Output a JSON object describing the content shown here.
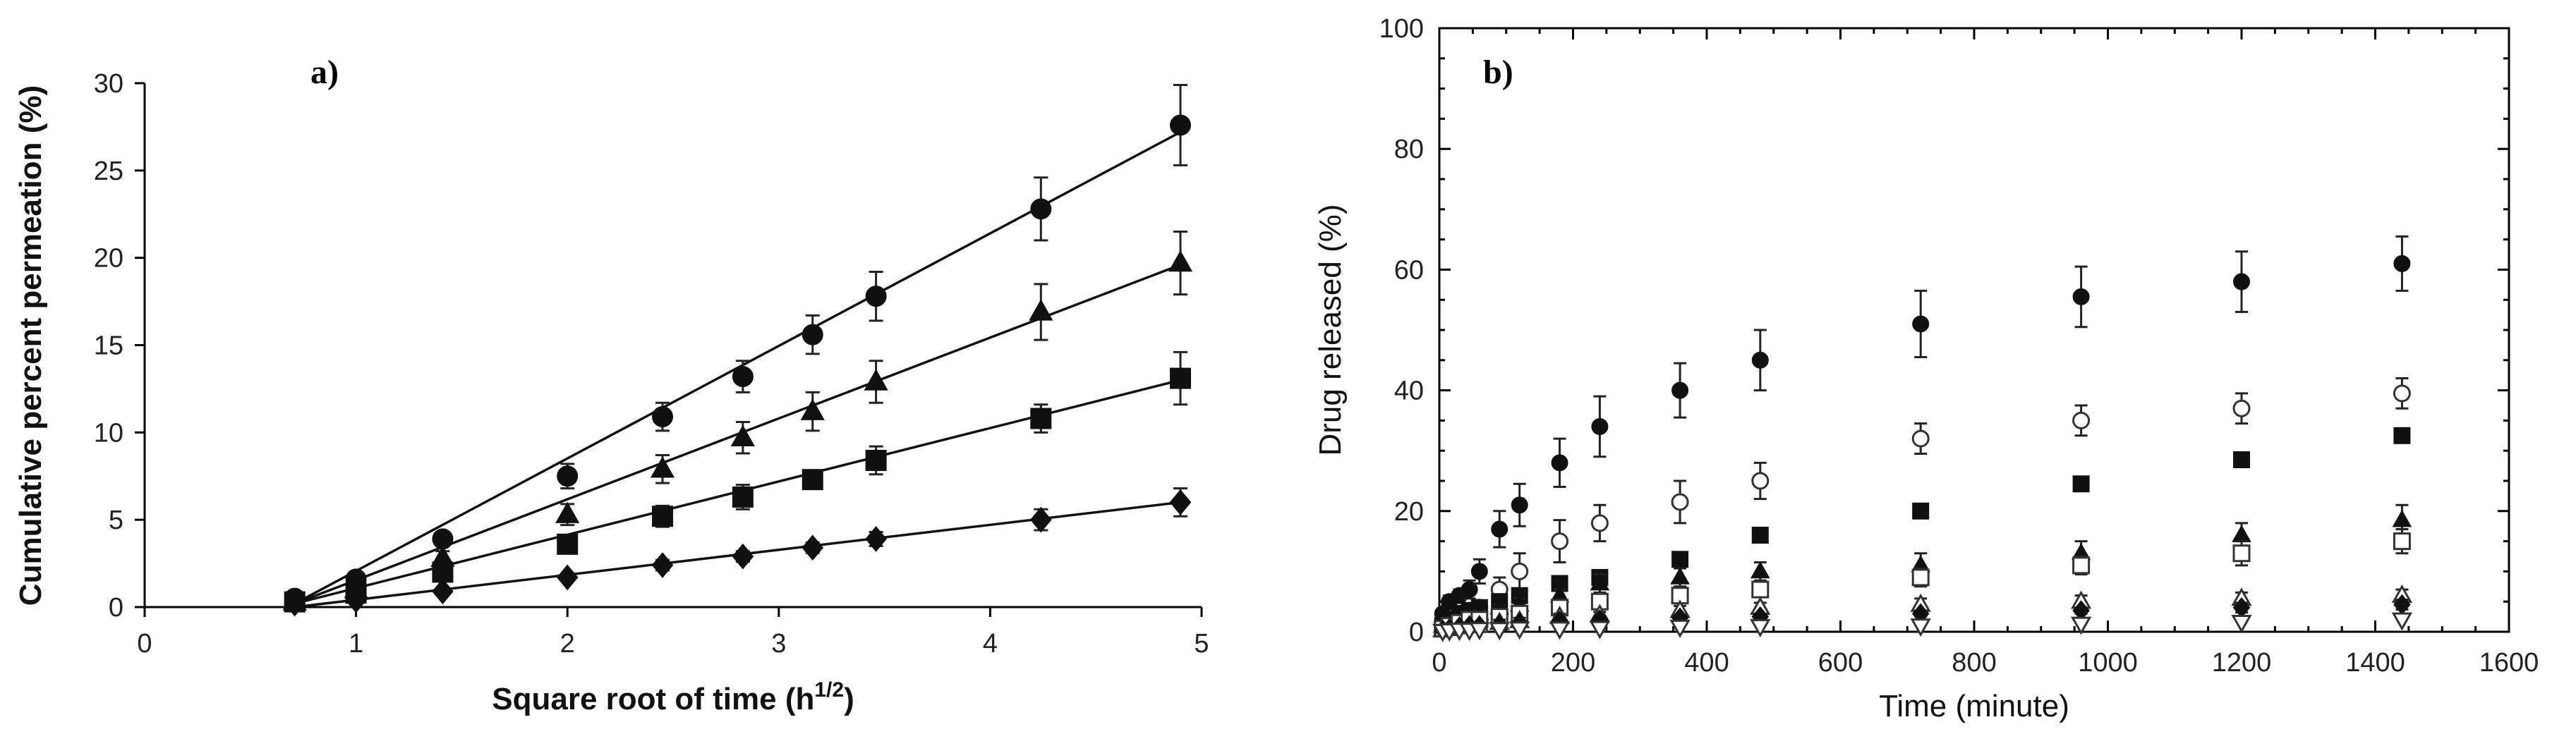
{
  "chart_data": [
    {
      "panel": "a)",
      "type": "line",
      "xlabel_prefix": "Square root of time (h",
      "xlabel_sup": "1/2",
      "xlabel_suffix": ")",
      "ylabel": "Cumulative percent permeation (%)",
      "xlim": [
        0,
        5
      ],
      "ylim": [
        0,
        30
      ],
      "xticks": [
        0,
        1,
        2,
        3,
        4,
        5
      ],
      "yticks": [
        0,
        5,
        10,
        15,
        20,
        25,
        30
      ],
      "x": [
        0.71,
        1.0,
        1.41,
        2.0,
        2.45,
        2.83,
        3.16,
        3.46,
        4.24,
        4.9
      ],
      "series": [
        {
          "name": "circle",
          "marker": "circle",
          "fill": "filled",
          "values": [
            0.5,
            1.6,
            3.9,
            7.5,
            10.9,
            13.2,
            15.6,
            17.8,
            22.8,
            27.6
          ],
          "errors": [
            0.3,
            0.3,
            0.4,
            0.7,
            0.8,
            0.9,
            1.1,
            1.4,
            1.8,
            2.3
          ],
          "fit": [
            [
              0.71,
              0.2
            ],
            [
              4.9,
              27.2
            ]
          ]
        },
        {
          "name": "triangle",
          "marker": "triangle",
          "fill": "filled",
          "values": [
            0.3,
            1.0,
            2.8,
            5.3,
            7.9,
            9.7,
            11.2,
            12.9,
            16.9,
            19.7
          ],
          "errors": [
            0.2,
            0.3,
            0.4,
            0.6,
            0.8,
            0.9,
            1.1,
            1.2,
            1.6,
            1.8
          ],
          "fit": [
            [
              0.71,
              0.2
            ],
            [
              4.9,
              19.6
            ]
          ]
        },
        {
          "name": "square",
          "marker": "square",
          "fill": "filled",
          "values": [
            0.3,
            0.8,
            2.0,
            3.6,
            5.2,
            6.3,
            7.3,
            8.4,
            10.8,
            13.1
          ],
          "errors": [
            0.2,
            0.2,
            0.3,
            0.4,
            0.6,
            0.7,
            0.5,
            0.8,
            0.8,
            1.5
          ],
          "fit": [
            [
              0.71,
              0.2
            ],
            [
              4.9,
              13.0
            ]
          ]
        },
        {
          "name": "diamond",
          "marker": "diamond",
          "fill": "filled",
          "values": [
            0.2,
            0.4,
            0.9,
            1.7,
            2.4,
            2.9,
            3.4,
            3.9,
            5.0,
            6.0
          ],
          "errors": [
            0.1,
            0.1,
            0.2,
            0.2,
            0.3,
            0.3,
            0.3,
            0.4,
            0.6,
            0.8
          ],
          "fit": [
            [
              0.71,
              0.0
            ],
            [
              4.9,
              6.0
            ]
          ]
        }
      ]
    },
    {
      "panel": "b)",
      "type": "scatter",
      "xlabel": "Time (minute)",
      "ylabel": "Drug released (%)",
      "xlim": [
        0,
        1600
      ],
      "ylim": [
        0,
        100
      ],
      "xticks": [
        0,
        200,
        400,
        600,
        800,
        1000,
        1200,
        1400,
        1600
      ],
      "yticks": [
        0,
        20,
        40,
        60,
        80,
        100
      ],
      "series": [
        {
          "name": "filled circle",
          "marker": "circle",
          "fill": "filled",
          "x": [
            5,
            15,
            30,
            45,
            60,
            90,
            120,
            180,
            240,
            360,
            480,
            720,
            960,
            1200,
            1440
          ],
          "values": [
            3,
            5,
            6,
            7,
            10,
            17,
            21,
            28,
            34,
            40,
            45,
            51,
            55.5,
            58,
            61
          ],
          "errors": [
            0.5,
            1,
            1,
            1.5,
            2,
            3,
            3.5,
            4,
            5,
            4.5,
            5,
            5.5,
            5,
            5,
            4.5
          ]
        },
        {
          "name": "open circle",
          "marker": "circle",
          "fill": "open",
          "x": [
            5,
            15,
            30,
            45,
            60,
            90,
            120,
            180,
            240,
            360,
            480,
            720,
            960,
            1200,
            1440
          ],
          "values": [
            1,
            2,
            3,
            3.5,
            4,
            7,
            10,
            15,
            18,
            21.5,
            25,
            32,
            35,
            37,
            39.5
          ],
          "errors": [
            0.5,
            0.5,
            1,
            1,
            1,
            2,
            3,
            3.5,
            3,
            3.5,
            3,
            2.5,
            2.5,
            2.5,
            2.5
          ]
        },
        {
          "name": "filled square",
          "marker": "square",
          "fill": "filled",
          "x": [
            5,
            15,
            30,
            45,
            60,
            90,
            120,
            180,
            240,
            360,
            480,
            720,
            960,
            1200,
            1440
          ],
          "values": [
            1,
            2,
            3,
            3.5,
            4,
            5,
            6,
            8,
            9,
            12,
            16,
            20,
            24.5,
            28.5,
            32.5
          ],
          "errors": [
            0.5,
            0.5,
            0.5,
            0.5,
            0.5,
            1,
            1,
            1,
            1,
            1,
            1,
            1,
            1,
            1,
            0.5
          ]
        },
        {
          "name": "filled triangle",
          "marker": "triangle",
          "fill": "filled",
          "x": [
            5,
            15,
            30,
            45,
            60,
            90,
            120,
            180,
            240,
            360,
            480,
            720,
            960,
            1200,
            1440
          ],
          "values": [
            1,
            1.5,
            2,
            2.5,
            3,
            4,
            4.5,
            6,
            8,
            9,
            10,
            11,
            13,
            16,
            18.5
          ],
          "errors": [
            0.5,
            0.5,
            0.5,
            0.5,
            0.5,
            0.5,
            1,
            1,
            1.5,
            1.5,
            1.5,
            2,
            2,
            2,
            2.5
          ]
        },
        {
          "name": "open square",
          "marker": "square",
          "fill": "open",
          "x": [
            5,
            15,
            30,
            45,
            60,
            90,
            120,
            180,
            240,
            360,
            480,
            720,
            960,
            1200,
            1440
          ],
          "values": [
            0.5,
            1,
            1.5,
            2,
            2,
            2.5,
            3,
            4,
            5,
            6,
            7,
            9,
            11,
            13,
            15
          ],
          "errors": [
            0.3,
            0.3,
            0.5,
            0.5,
            0.5,
            0.5,
            0.5,
            1,
            1,
            1,
            1,
            1.5,
            1.5,
            2,
            2
          ]
        },
        {
          "name": "open triangle",
          "marker": "triangle",
          "fill": "open",
          "x": [
            5,
            15,
            30,
            45,
            60,
            90,
            120,
            180,
            240,
            360,
            480,
            720,
            960,
            1200,
            1440
          ],
          "values": [
            0.3,
            0.5,
            0.8,
            1,
            1,
            1.5,
            1.8,
            2.5,
            2.8,
            3.5,
            4,
            4.5,
            5,
            5.5,
            6
          ],
          "errors": [
            0.2,
            0.2,
            0.3,
            0.3,
            0.3,
            0.5,
            0.5,
            0.5,
            0.5,
            0.8,
            0.8,
            1,
            1,
            1,
            1
          ]
        },
        {
          "name": "filled diamond",
          "marker": "diamond",
          "fill": "filled",
          "x": [
            5,
            15,
            30,
            45,
            60,
            90,
            120,
            180,
            240,
            360,
            480,
            720,
            960,
            1200,
            1440
          ],
          "values": [
            0.3,
            0.5,
            0.8,
            1,
            1,
            1.2,
            1.5,
            1.8,
            2,
            2.3,
            2.5,
            3,
            3.5,
            4,
            4.5
          ],
          "errors": [
            0.2,
            0.2,
            0.2,
            0.3,
            0.3,
            0.3,
            0.3,
            0.5,
            0.5,
            0.5,
            0.5,
            0.5,
            0.5,
            0.8,
            0.8
          ]
        },
        {
          "name": "open inverted triangle",
          "marker": "triangle-down",
          "fill": "open",
          "x": [
            5,
            15,
            30,
            45,
            60,
            90,
            120,
            180,
            240,
            360,
            480,
            720,
            960,
            1200,
            1440
          ],
          "values": [
            0.1,
            0.2,
            0.3,
            0.3,
            0.4,
            0.4,
            0.5,
            0.5,
            0.6,
            0.8,
            0.9,
            1,
            1.3,
            1.6,
            2
          ],
          "errors": [
            0.1,
            0.1,
            0.1,
            0.1,
            0.1,
            0.1,
            0.1,
            0.2,
            0.2,
            0.2,
            0.2,
            0.3,
            0.3,
            0.3,
            0.3
          ]
        }
      ]
    }
  ]
}
